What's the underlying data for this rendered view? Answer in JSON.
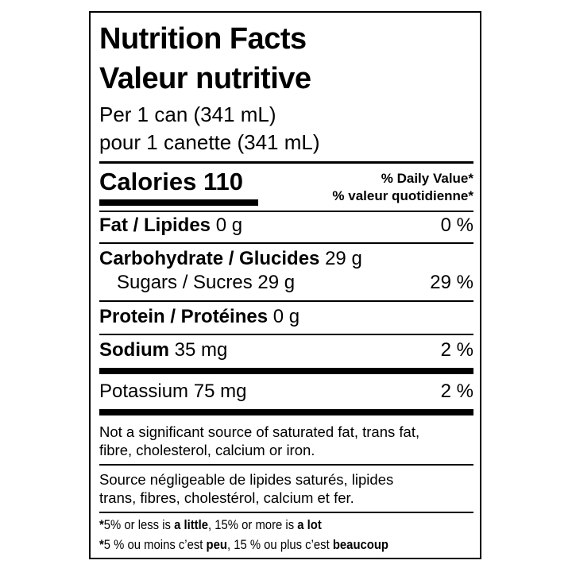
{
  "title_en": "Nutrition Facts",
  "title_fr": "Valeur nutritive",
  "serving_en": "Per 1 can (341 mL)",
  "serving_fr": "pour 1 canette (341 mL)",
  "calories_label": "Calories",
  "calories_value": "110",
  "dv_header_en": "% Daily Value*",
  "dv_header_fr": "% valeur quotidienne*",
  "nutrients": [
    {
      "label": "Fat / Lipides",
      "amount": "0 g",
      "dv": "0 %"
    },
    {
      "label": "Carbohydrate / Glucides",
      "amount": "29 g",
      "dv": ""
    },
    {
      "label": "Sugars / Sucres",
      "amount": "29 g",
      "dv": "29 %"
    },
    {
      "label": "Protein / Protéines",
      "amount": "0 g",
      "dv": ""
    },
    {
      "label": "Sodium",
      "amount": "35 mg",
      "dv": "2 %"
    },
    {
      "label": "Potassium",
      "amount": "75 mg",
      "dv": "2 %"
    }
  ],
  "note_en": [
    "Not a significant source of saturated fat, trans fat,",
    "fibre, cholesterol, calcium or iron."
  ],
  "note_fr": [
    "Source négligeable de lipides saturés, lipides",
    "trans, fibres, cholestérol, calcium et fer."
  ],
  "footnote_en": {
    "star": "*",
    "a": "5% or less is ",
    "b": "a little",
    "c": ", 15% or more is ",
    "d": "a lot"
  },
  "footnote_fr": {
    "star": "*",
    "a": "5 % ou moins c’est ",
    "b": "peu",
    "c": ", 15 % ou plus c’est ",
    "d": "beaucoup"
  }
}
